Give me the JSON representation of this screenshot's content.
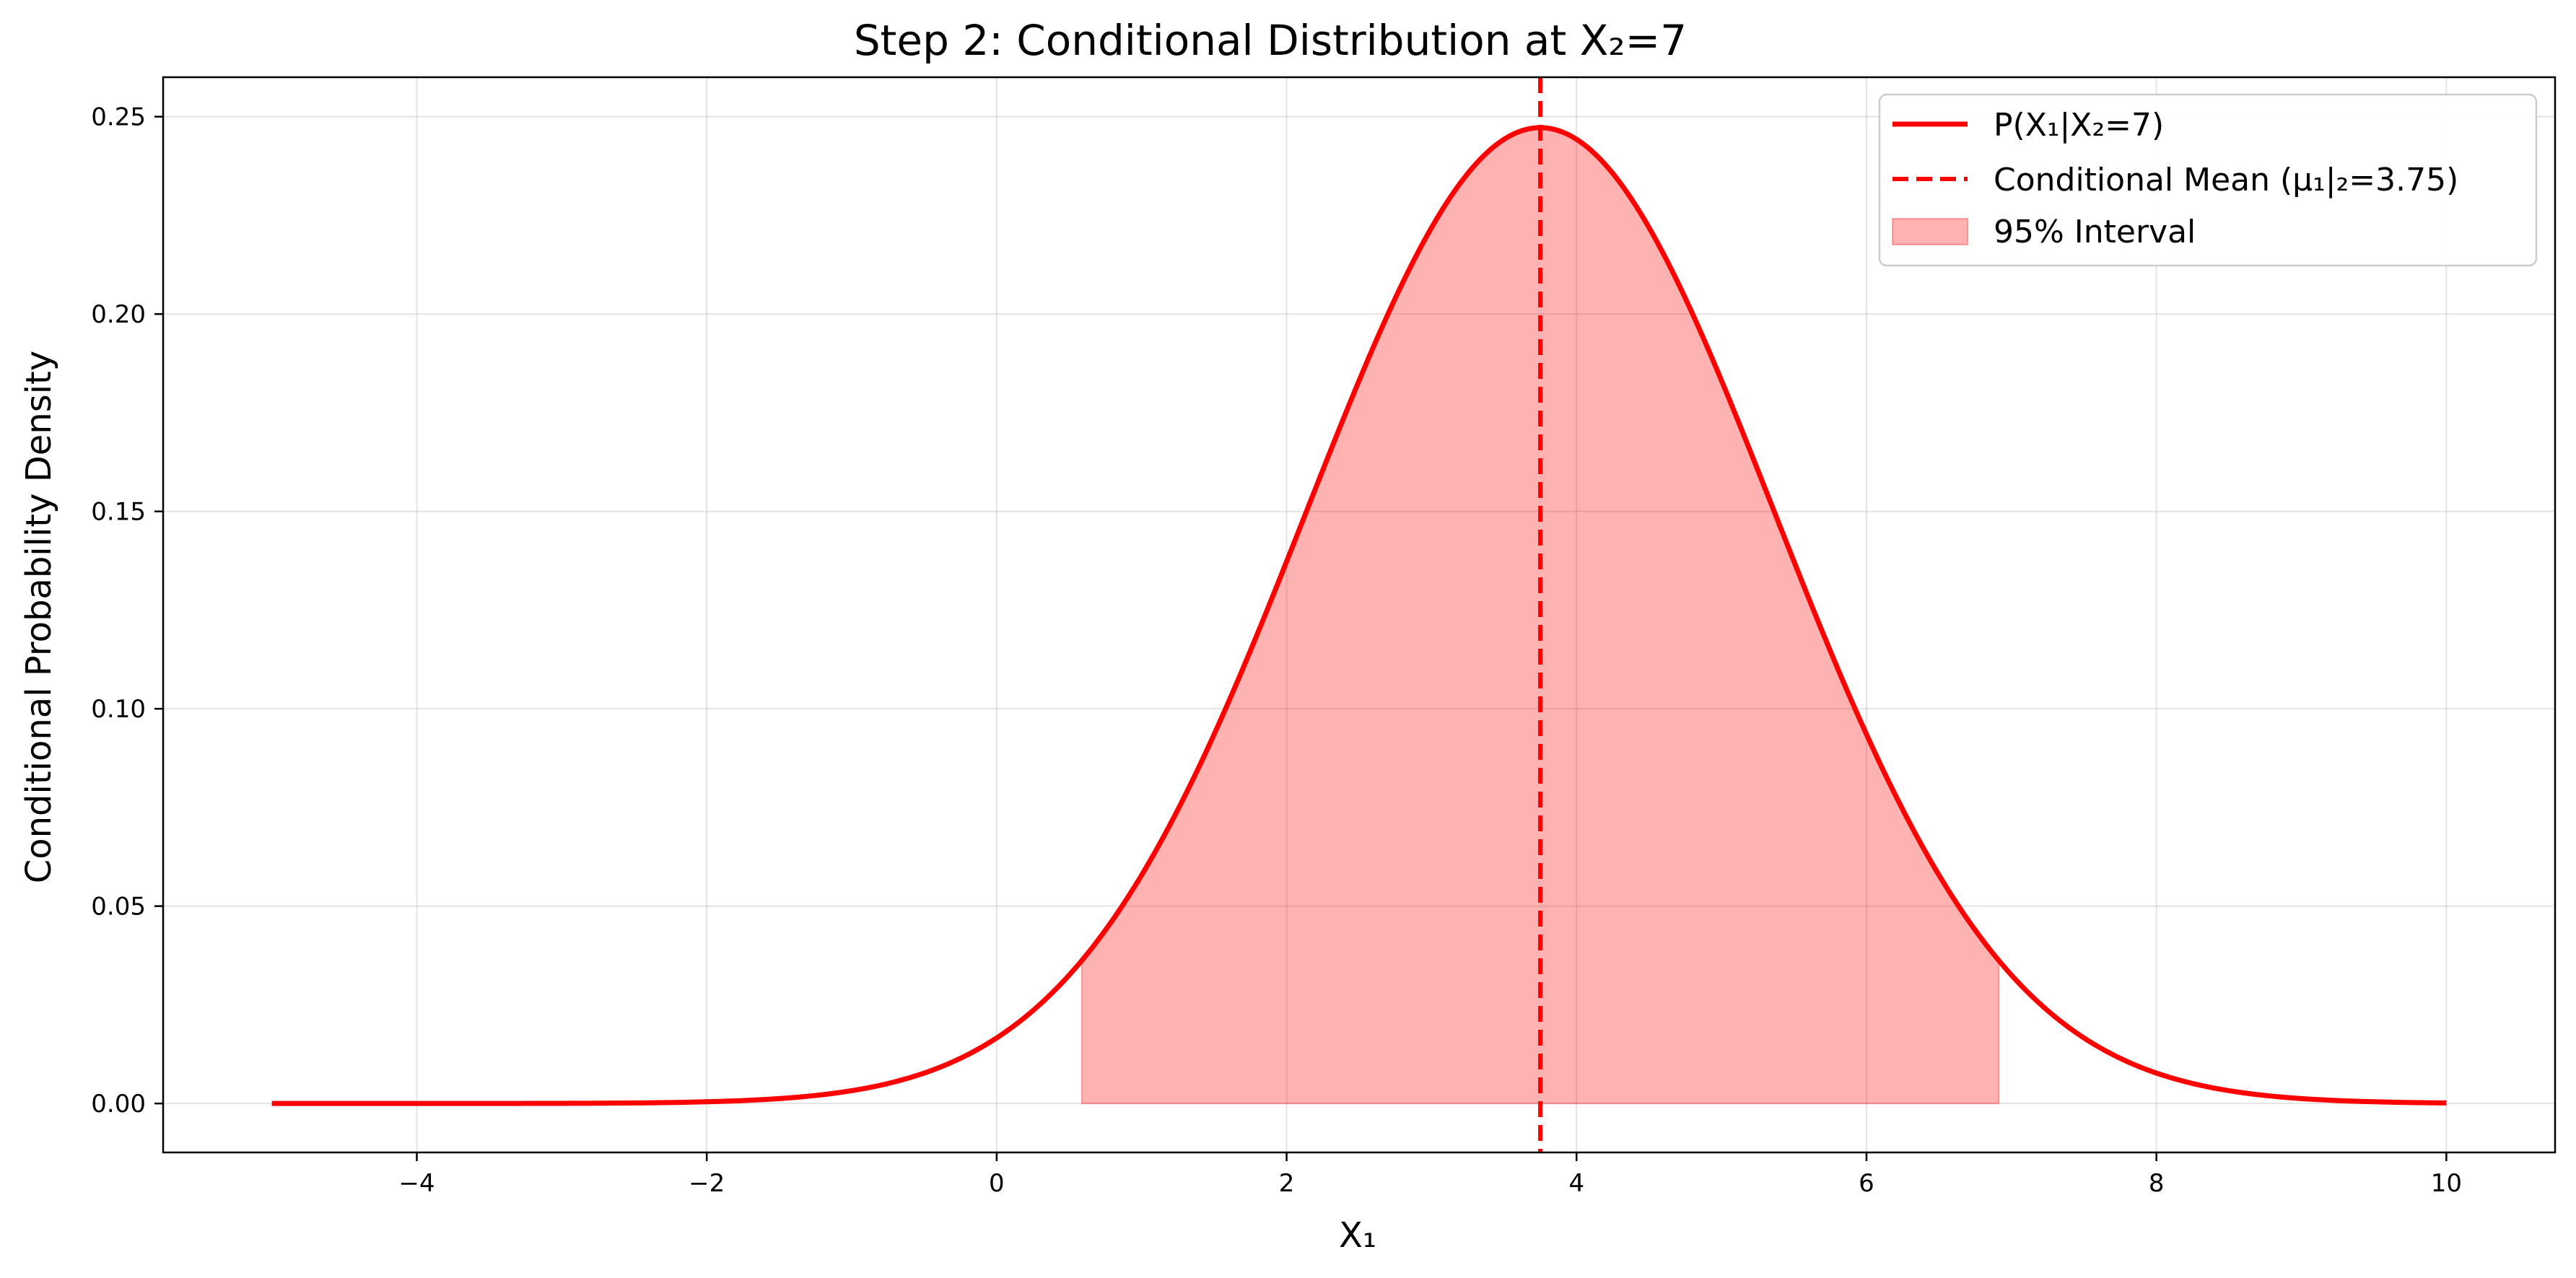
{
  "chart_data": {
    "type": "line",
    "title": "Step 2: Conditional Distribution at X₂=7",
    "xlabel": "X₁",
    "ylabel": "Conditional Probability Density",
    "xlim": [
      -5.75,
      10.75
    ],
    "ylim": [
      -0.0124,
      0.26
    ],
    "xticks": [
      -4,
      -2,
      0,
      2,
      4,
      6,
      8,
      10
    ],
    "xtick_labels": [
      "−4",
      "−2",
      "0",
      "2",
      "4",
      "6",
      "8",
      "10"
    ],
    "yticks": [
      0.0,
      0.05,
      0.1,
      0.15,
      0.2,
      0.25
    ],
    "ytick_labels": [
      "0.00",
      "0.05",
      "0.10",
      "0.15",
      "0.20",
      "0.25"
    ],
    "grid": true,
    "legend_position": "top-right",
    "series": [
      {
        "name": "P(X₁|X₂=7)",
        "kind": "normal_pdf_curve",
        "mean": 3.75,
        "std": 1.6137,
        "x_range": [
          -5,
          10
        ],
        "peak": 0.2472,
        "color": "#ff0000"
      },
      {
        "name": "Conditional Mean (μ₁|₂=3.75)",
        "kind": "vertical_line",
        "x": 3.75,
        "style": "dashed",
        "color": "#ff0000"
      },
      {
        "name": "95% Interval",
        "kind": "shaded_area",
        "x_range": [
          0.587,
          6.913
        ],
        "color": "#ff0000",
        "alpha": 0.3
      }
    ]
  }
}
